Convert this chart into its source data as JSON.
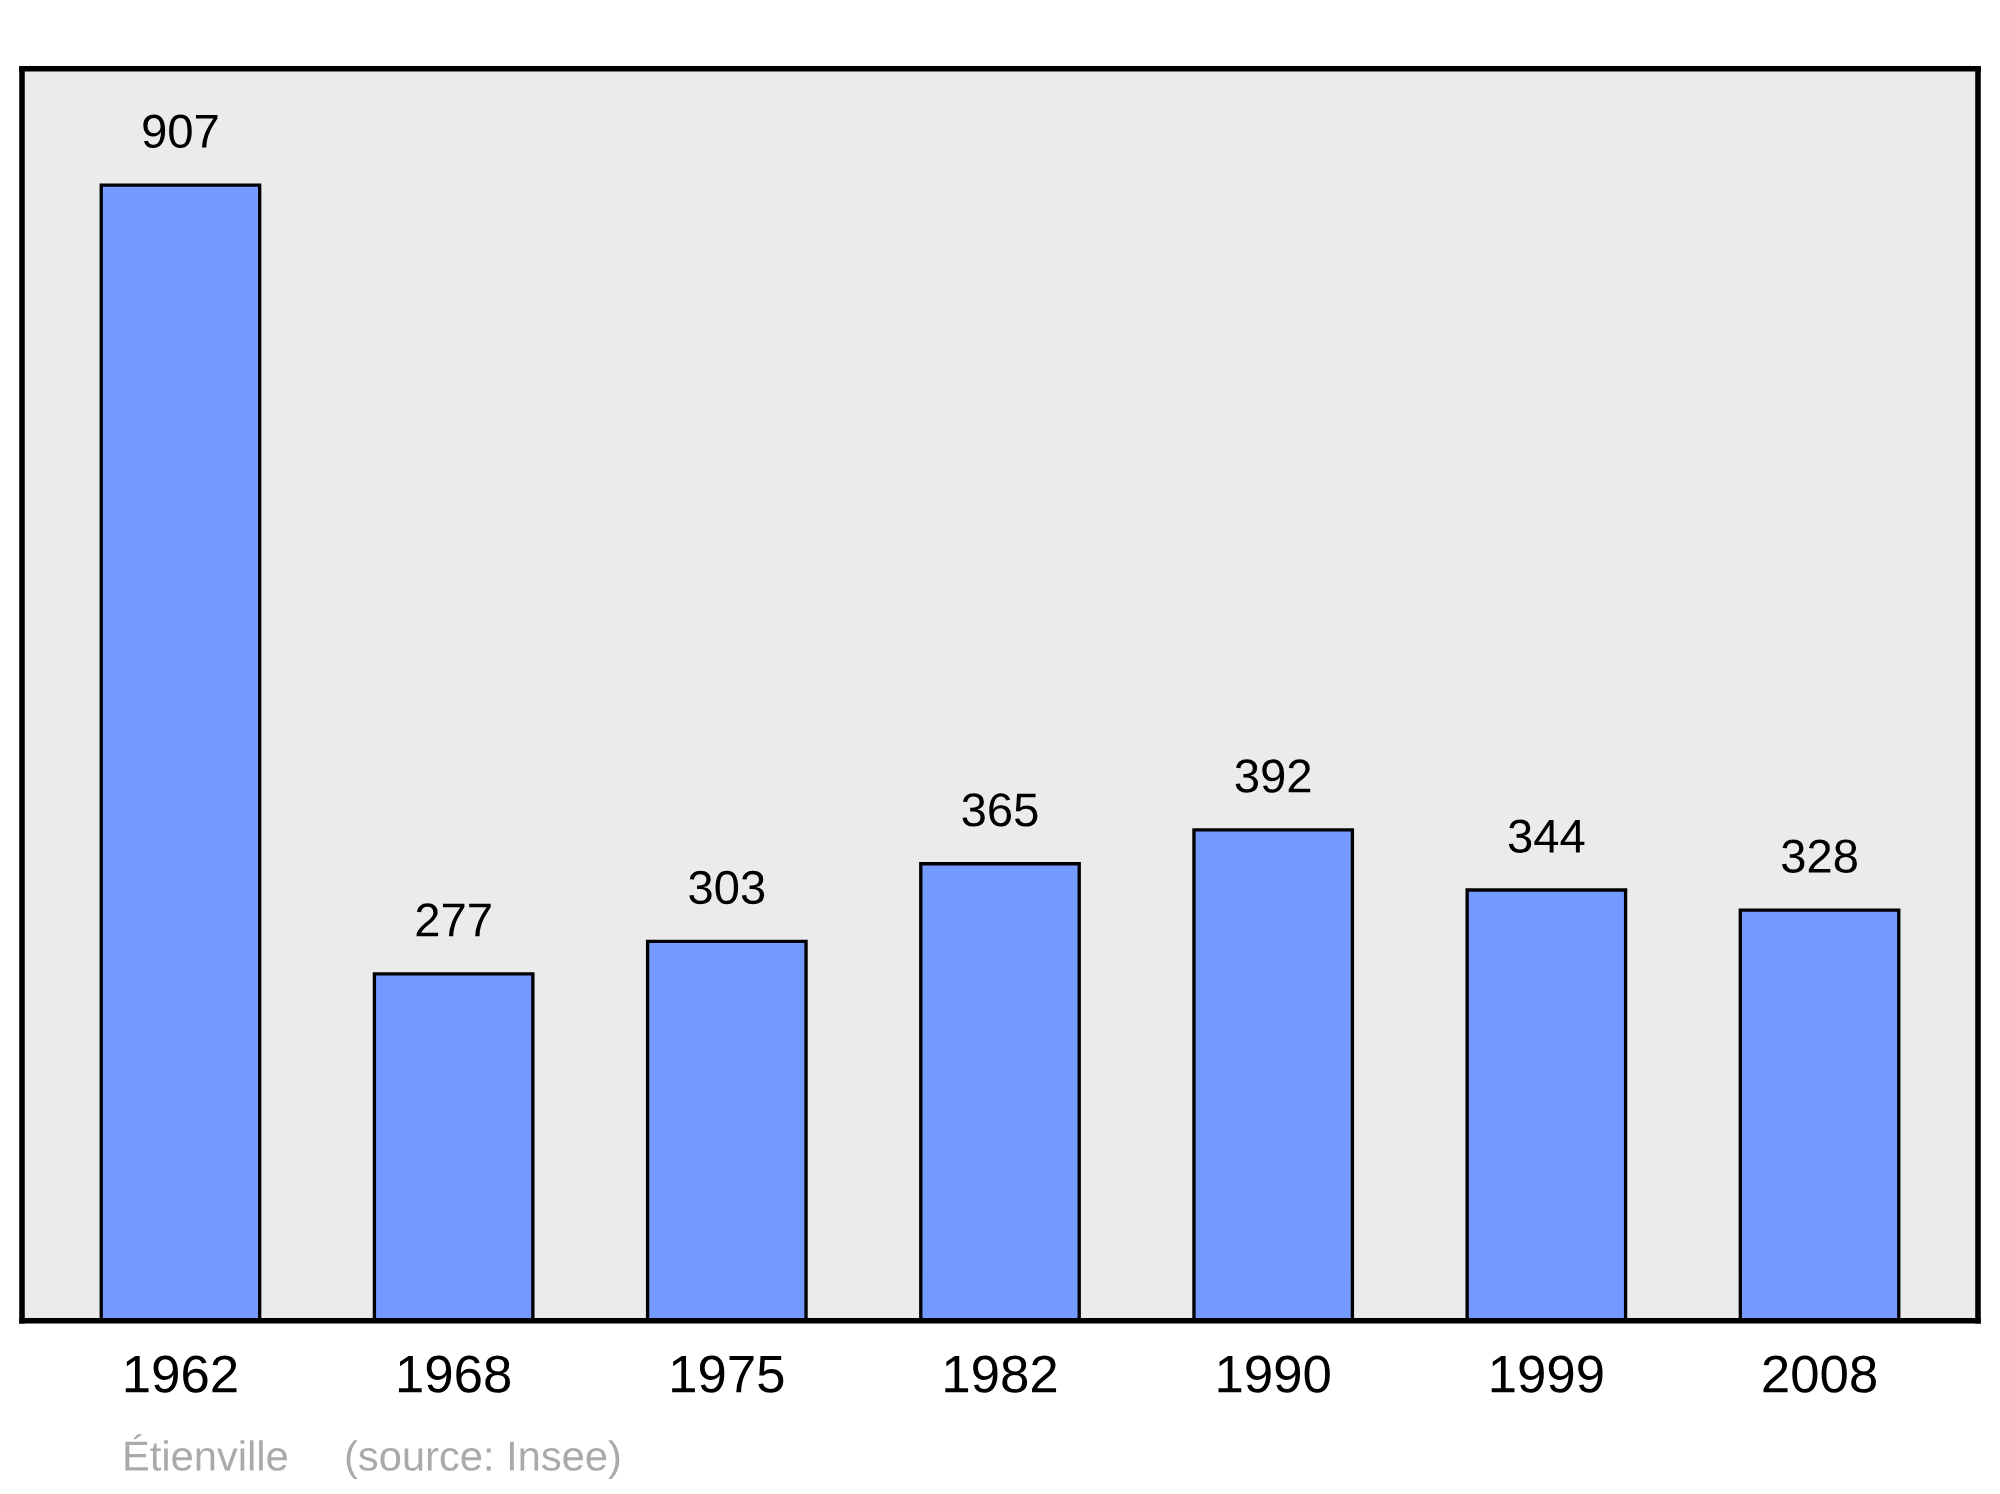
{
  "chart_data": {
    "type": "bar",
    "categories": [
      "1962",
      "1968",
      "1975",
      "1982",
      "1990",
      "1999",
      "2008"
    ],
    "values": [
      907,
      277,
      303,
      365,
      392,
      344,
      328
    ],
    "color": "#7499ff",
    "ylim": [
      0,
      1000
    ],
    "data_labels": true,
    "grid": false,
    "legend": false,
    "annotations": [
      "Étienville",
      "(source: Insee)"
    ]
  }
}
